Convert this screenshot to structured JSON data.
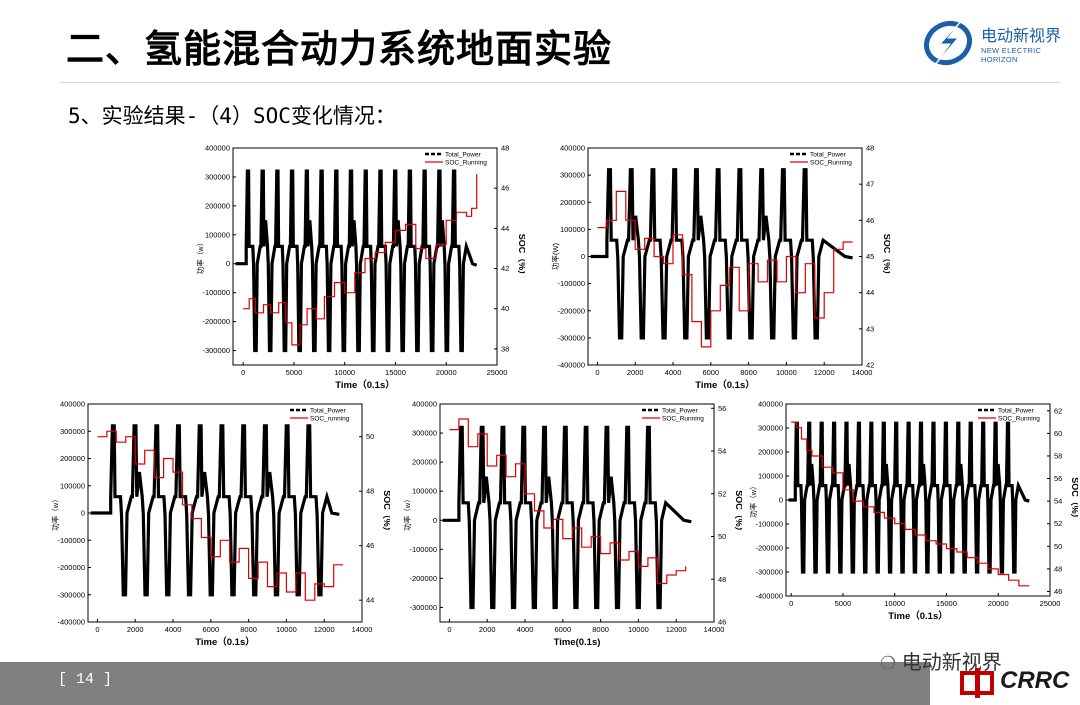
{
  "header": {
    "title": "二、氢能混合动力系统地面实验",
    "subtitle": "5、实验结果-（4）SOC变化情况：",
    "logo_cn": "电动新视界",
    "logo_en": "NEW ELECTRIC HORIZON"
  },
  "footer": {
    "page_number": "[ 14 ]",
    "watermark": "电动新视界",
    "brand": "CRRC"
  },
  "colors": {
    "power": "#000000",
    "soc": "#e00000",
    "footer_bar": "#7f7f7f",
    "logo_blue": "#1b5fa8"
  },
  "chart_data": [
    {
      "type": "line",
      "xlabel": "Time（0.1s）",
      "ylabel": "功率（w）",
      "y2label": "SOC（%）",
      "xticks": [
        0,
        5000,
        10000,
        15000,
        20000,
        25000
      ],
      "xlim": [
        -1000,
        25000
      ],
      "yticks": [
        -300000,
        -200000,
        -100000,
        0,
        100000,
        200000,
        300000,
        400000
      ],
      "ylim": [
        -350000,
        400000
      ],
      "y2ticks": [
        38,
        40,
        42,
        44,
        46,
        48
      ],
      "y2lim": [
        37.2,
        48
      ],
      "legend": [
        "Total_Power",
        "SOC_Running"
      ],
      "cycles": 15,
      "cycle_start": 300,
      "cycle_period": 1450,
      "end_time": 23000,
      "series": [
        {
          "name": "SOC_Running",
          "x": [
            0,
            600,
            1200,
            2000,
            2700,
            3500,
            4200,
            4800,
            5600,
            6300,
            7200,
            8000,
            9000,
            10000,
            11000,
            12000,
            13000,
            14000,
            15000,
            16000,
            17000,
            18000,
            19000,
            20000,
            21000,
            22000,
            22500,
            23000
          ],
          "y": [
            40.0,
            40.5,
            39.8,
            40.2,
            39.8,
            40.3,
            39.3,
            38.2,
            39.2,
            40.0,
            39.5,
            40.6,
            41.3,
            40.8,
            41.8,
            42.5,
            42.8,
            43.3,
            43.9,
            44.2,
            43.0,
            42.5,
            43.2,
            44.4,
            44.8,
            44.6,
            45.0,
            46.7
          ]
        }
      ]
    },
    {
      "type": "line",
      "xlabel": "Time（0.1s）",
      "ylabel": "功率(W)",
      "y2label": "SOC（%）",
      "xticks": [
        0,
        2000,
        4000,
        6000,
        8000,
        10000,
        12000,
        14000
      ],
      "xlim": [
        -500,
        14000
      ],
      "yticks": [
        -400000,
        -300000,
        -200000,
        -100000,
        0,
        100000,
        200000,
        300000,
        400000
      ],
      "ylim": [
        -400000,
        400000
      ],
      "y2ticks": [
        42,
        43,
        44,
        45,
        46,
        47,
        48
      ],
      "y2lim": [
        42,
        48
      ],
      "legend": [
        "Total_Power",
        "SOC_Running"
      ],
      "cycles": 10,
      "cycle_start": 500,
      "cycle_period": 1150,
      "end_time": 13500,
      "series": [
        {
          "name": "SOC_Running",
          "x": [
            0,
            500,
            1000,
            1500,
            2000,
            2500,
            3000,
            3500,
            4000,
            4500,
            5000,
            5500,
            6000,
            6500,
            7000,
            7500,
            8000,
            8500,
            9000,
            9500,
            10000,
            10500,
            11000,
            11500,
            12000,
            12500,
            13000,
            13500
          ],
          "y": [
            45.8,
            46.0,
            46.8,
            46.0,
            45.2,
            45.5,
            45.0,
            44.8,
            45.6,
            44.5,
            43.2,
            42.5,
            43.5,
            44.2,
            44.7,
            43.5,
            44.8,
            44.3,
            44.9,
            44.3,
            45.0,
            44.0,
            44.8,
            43.3,
            44.0,
            45.2,
            45.4,
            45.4
          ]
        }
      ]
    },
    {
      "type": "line",
      "xlabel": "Time（0.1s）",
      "ylabel": "功率（w）",
      "y2label": "SOC（%）",
      "xticks": [
        0,
        2000,
        4000,
        6000,
        8000,
        10000,
        12000,
        14000
      ],
      "xlim": [
        -500,
        14000
      ],
      "yticks": [
        -400000,
        -300000,
        -200000,
        -100000,
        0,
        100000,
        200000,
        300000,
        400000
      ],
      "ylim": [
        -400000,
        400000
      ],
      "y2ticks": [
        44,
        46,
        48,
        50
      ],
      "y2lim": [
        43.2,
        51.2
      ],
      "legend": [
        "Total_Power",
        "SOC_running"
      ],
      "cycles": 10,
      "cycle_start": 700,
      "cycle_period": 1150,
      "end_time": 12800,
      "series": [
        {
          "name": "SOC_running",
          "x": [
            0,
            500,
            1000,
            1500,
            2000,
            2500,
            3000,
            3500,
            4000,
            4500,
            5000,
            5500,
            6000,
            6500,
            7000,
            7500,
            8000,
            8500,
            9000,
            9500,
            10000,
            10500,
            11000,
            11500,
            12000,
            12500,
            13000
          ],
          "y": [
            50.0,
            50.2,
            49.8,
            50.0,
            49.0,
            49.5,
            48.5,
            49.2,
            48.7,
            47.5,
            47.0,
            46.3,
            45.6,
            46.2,
            45.4,
            45.9,
            44.8,
            45.4,
            44.5,
            45.0,
            44.3,
            45.0,
            44.0,
            44.6,
            44.5,
            45.3,
            45.3
          ]
        }
      ]
    },
    {
      "type": "line",
      "xlabel": "Time(0.1s)",
      "ylabel": "功率（w）",
      "y2label": "SOC（%）",
      "xticks": [
        0,
        2000,
        4000,
        6000,
        8000,
        10000,
        12000,
        14000
      ],
      "xlim": [
        -500,
        14000
      ],
      "yticks": [
        -300000,
        -200000,
        -100000,
        0,
        100000,
        200000,
        300000,
        400000
      ],
      "ylim": [
        -350000,
        400000
      ],
      "y2ticks": [
        46,
        48,
        50,
        52,
        54,
        56
      ],
      "y2lim": [
        46,
        56.2
      ],
      "legend": [
        "Total_Power",
        "SOC_Running"
      ],
      "cycles": 10,
      "cycle_start": 500,
      "cycle_period": 1100,
      "end_time": 12800,
      "series": [
        {
          "name": "SOC_Running",
          "x": [
            0,
            500,
            1000,
            1500,
            2000,
            2500,
            3000,
            3500,
            4000,
            4500,
            5000,
            5500,
            6000,
            6500,
            7000,
            7500,
            8000,
            8500,
            9000,
            9500,
            10000,
            10500,
            11000,
            11500,
            12000,
            12500
          ],
          "y": [
            55.0,
            55.5,
            54.2,
            54.8,
            53.3,
            53.8,
            52.8,
            53.4,
            52.0,
            51.2,
            50.4,
            50.8,
            49.9,
            50.4,
            49.5,
            50.0,
            49.2,
            49.7,
            48.9,
            49.3,
            48.6,
            49.0,
            47.8,
            48.2,
            48.4,
            48.6
          ]
        }
      ]
    },
    {
      "type": "line",
      "xlabel": "Time（0.1s）",
      "ylabel": "功率（w）",
      "y2label": "SOC（%）",
      "xticks": [
        0,
        5000,
        10000,
        15000,
        20000,
        25000
      ],
      "xlim": [
        -500,
        25000
      ],
      "yticks": [
        -400000,
        -300000,
        -200000,
        -100000,
        0,
        100000,
        200000,
        300000,
        400000
      ],
      "ylim": [
        -400000,
        400000
      ],
      "y2ticks": [
        46,
        48,
        50,
        52,
        54,
        56,
        58,
        60,
        62
      ],
      "y2lim": [
        45.6,
        62.6
      ],
      "legend": [
        "Total_Power",
        "SOC_Running"
      ],
      "cycles": 18,
      "cycle_start": 400,
      "cycle_period": 1200,
      "end_time": 23000,
      "series": [
        {
          "name": "SOC_Running",
          "x": [
            0,
            500,
            1000,
            1500,
            2000,
            3000,
            4000,
            5000,
            6000,
            7000,
            8000,
            9000,
            10000,
            11000,
            12000,
            13000,
            14000,
            15000,
            16000,
            17000,
            18000,
            19000,
            20000,
            21000,
            22000,
            23000
          ],
          "y": [
            61.0,
            60.5,
            59.5,
            58.5,
            58.0,
            57.0,
            56.5,
            55.0,
            54.0,
            53.5,
            53.0,
            52.5,
            52.0,
            51.5,
            51.0,
            50.5,
            50.2,
            49.8,
            49.5,
            49.0,
            48.5,
            48.0,
            47.5,
            47.0,
            46.5,
            46.5
          ]
        }
      ]
    }
  ]
}
